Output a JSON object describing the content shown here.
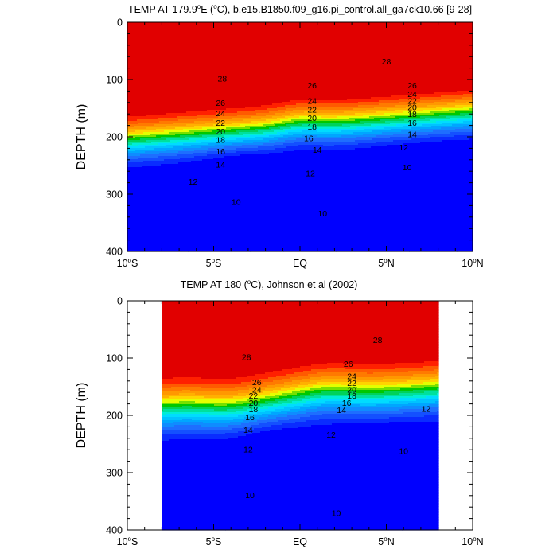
{
  "chart_data": [
    {
      "type": "contour",
      "title": "TEMP AT 179.9°E (°C), b.e15.B1850.f09_g16.pi_control.all_ga7ck10.66 [9-28]",
      "title_parts": [
        "TEMP AT 179.9",
        "o",
        "E (",
        "o",
        "C), b.e15.B1850.f09_g16.pi_control.all_ga7ck10.66 [9-28]"
      ],
      "ylabel": "DEPTH (m)",
      "xlim": [
        -10,
        10
      ],
      "ylim": [
        0,
        400
      ],
      "y_inverted": true,
      "x_ticks": [
        {
          "value": -10,
          "label": "10",
          "sup": "o",
          "suffix": "S"
        },
        {
          "value": -5,
          "label": "5",
          "sup": "o",
          "suffix": "S"
        },
        {
          "value": 0,
          "label": "EQ",
          "sup": "",
          "suffix": ""
        },
        {
          "value": 5,
          "label": "5",
          "sup": "o",
          "suffix": "N"
        },
        {
          "value": 10,
          "label": "10",
          "sup": "o",
          "suffix": "N"
        }
      ],
      "y_ticks": [
        {
          "value": 0,
          "label": "0"
        },
        {
          "value": 100,
          "label": "100"
        },
        {
          "value": 200,
          "label": "200"
        },
        {
          "value": 300,
          "label": "300"
        },
        {
          "value": 400,
          "label": "400"
        }
      ],
      "data_xlim": [
        -10,
        10
      ],
      "contour_interval": 1,
      "contour_labels": [
        {
          "x": 5.0,
          "depth": 68,
          "label": "28"
        },
        {
          "x": -4.5,
          "depth": 98,
          "label": "28"
        },
        {
          "x": 0.7,
          "depth": 110,
          "label": "26"
        },
        {
          "x": 6.5,
          "depth": 110,
          "label": "26"
        },
        {
          "x": -4.6,
          "depth": 140,
          "label": "26"
        },
        {
          "x": 0.7,
          "depth": 137,
          "label": "24"
        },
        {
          "x": 6.5,
          "depth": 125,
          "label": "24"
        },
        {
          "x": -4.6,
          "depth": 158,
          "label": "24"
        },
        {
          "x": 0.7,
          "depth": 152,
          "label": "22"
        },
        {
          "x": 6.5,
          "depth": 137,
          "label": "22"
        },
        {
          "x": -4.6,
          "depth": 175,
          "label": "22"
        },
        {
          "x": 0.7,
          "depth": 167,
          "label": "20"
        },
        {
          "x": 6.5,
          "depth": 148,
          "label": "20"
        },
        {
          "x": -4.6,
          "depth": 190,
          "label": "20"
        },
        {
          "x": 0.7,
          "depth": 182,
          "label": "18"
        },
        {
          "x": 6.5,
          "depth": 160,
          "label": "18"
        },
        {
          "x": -4.6,
          "depth": 205,
          "label": "18"
        },
        {
          "x": 0.5,
          "depth": 202,
          "label": "16"
        },
        {
          "x": 6.5,
          "depth": 175,
          "label": "16"
        },
        {
          "x": -4.6,
          "depth": 225,
          "label": "16"
        },
        {
          "x": 1.0,
          "depth": 222,
          "label": "14"
        },
        {
          "x": 6.5,
          "depth": 195,
          "label": "14"
        },
        {
          "x": -4.6,
          "depth": 248,
          "label": "14"
        },
        {
          "x": 0.6,
          "depth": 263,
          "label": "12"
        },
        {
          "x": 6.0,
          "depth": 218,
          "label": "12"
        },
        {
          "x": -6.2,
          "depth": 278,
          "label": "12"
        },
        {
          "x": 1.3,
          "depth": 333,
          "label": "10"
        },
        {
          "x": 6.2,
          "depth": 253,
          "label": "10"
        },
        {
          "x": -3.7,
          "depth": 313,
          "label": "10"
        }
      ]
    },
    {
      "type": "contour",
      "title": "TEMP AT 180 (°C), Johnson et al (2002)",
      "title_parts": [
        "TEMP AT 180 (",
        "o",
        "C), Johnson et al (2002)"
      ],
      "ylabel": "DEPTH (m)",
      "xlim": [
        -10,
        10
      ],
      "ylim": [
        0,
        400
      ],
      "y_inverted": true,
      "x_ticks": [
        {
          "value": -10,
          "label": "10",
          "sup": "o",
          "suffix": "S"
        },
        {
          "value": -5,
          "label": "5",
          "sup": "o",
          "suffix": "S"
        },
        {
          "value": 0,
          "label": "EQ",
          "sup": "",
          "suffix": ""
        },
        {
          "value": 5,
          "label": "5",
          "sup": "o",
          "suffix": "N"
        },
        {
          "value": 10,
          "label": "10",
          "sup": "o",
          "suffix": "N"
        }
      ],
      "y_ticks": [
        {
          "value": 0,
          "label": "0"
        },
        {
          "value": 100,
          "label": "100"
        },
        {
          "value": 200,
          "label": "200"
        },
        {
          "value": 300,
          "label": "300"
        },
        {
          "value": 400,
          "label": "400"
        }
      ],
      "data_xlim": [
        -8,
        8
      ],
      "contour_interval": 1,
      "contour_labels": [
        {
          "x": 4.5,
          "depth": 68,
          "label": "28"
        },
        {
          "x": -3.1,
          "depth": 98,
          "label": "28"
        },
        {
          "x": 2.8,
          "depth": 110,
          "label": "26"
        },
        {
          "x": -2.5,
          "depth": 142,
          "label": "26"
        },
        {
          "x": 3.0,
          "depth": 131,
          "label": "24"
        },
        {
          "x": -2.5,
          "depth": 155,
          "label": "24"
        },
        {
          "x": 3.0,
          "depth": 143,
          "label": "22"
        },
        {
          "x": -2.7,
          "depth": 165,
          "label": "22"
        },
        {
          "x": 3.0,
          "depth": 155,
          "label": "20"
        },
        {
          "x": -2.7,
          "depth": 178,
          "label": "20"
        },
        {
          "x": 3.0,
          "depth": 165,
          "label": "18"
        },
        {
          "x": -2.7,
          "depth": 189,
          "label": "18"
        },
        {
          "x": 2.7,
          "depth": 178,
          "label": "16"
        },
        {
          "x": -2.9,
          "depth": 203,
          "label": "16"
        },
        {
          "x": 2.4,
          "depth": 190,
          "label": "14"
        },
        {
          "x": -3.0,
          "depth": 225,
          "label": "14"
        },
        {
          "x": 7.3,
          "depth": 188,
          "label": "12"
        },
        {
          "x": 1.8,
          "depth": 233,
          "label": "12"
        },
        {
          "x": -3.0,
          "depth": 259,
          "label": "12"
        },
        {
          "x": 6.0,
          "depth": 262,
          "label": "10"
        },
        {
          "x": 2.1,
          "depth": 370,
          "label": "10"
        },
        {
          "x": -2.9,
          "depth": 339,
          "label": "10"
        }
      ]
    }
  ]
}
